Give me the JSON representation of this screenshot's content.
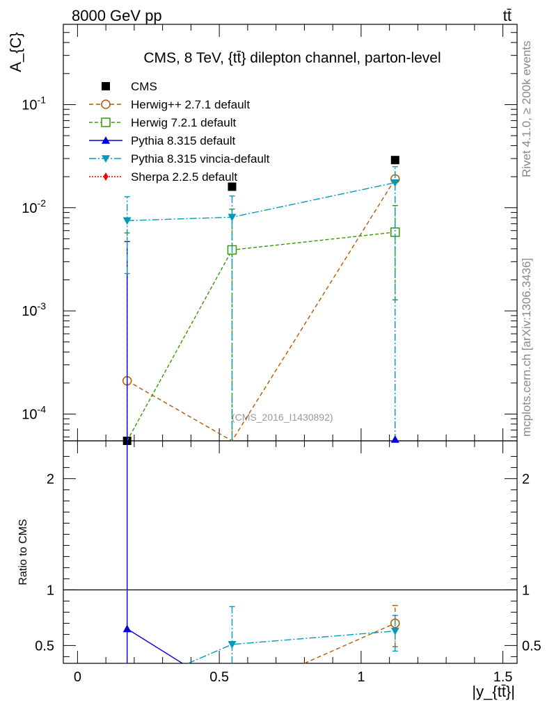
{
  "header": {
    "left": "8000 GeV pp",
    "right": "tt̄"
  },
  "side_text": {
    "version": "Rivet 4.1.0, ≥ 200k events",
    "site": "mcplots.cern.ch [arXiv:1306.3436]"
  },
  "watermark": "(CMS_2016_I1430892)",
  "chart_data": [
    {
      "type": "line",
      "panel": "main",
      "title": "CMS, 8 TeV, {tt̄} dilepton channel, parton-level",
      "ylabel": "A_{C}",
      "yscale": "log",
      "ylim": [
        5.5e-05,
        0.6
      ],
      "xlim": [
        -0.05,
        1.55
      ],
      "x_ticks": [
        "0",
        "0.5",
        "1",
        "1.5"
      ],
      "y_ticks": [
        "10^-4",
        "10^-3",
        "10^-2",
        "10^-1"
      ],
      "series": [
        {
          "name": "CMS",
          "marker": "square-filled",
          "color": "#000000",
          "points": [
            {
              "x": 0.175,
              "y": 5.5e-05
            },
            {
              "x": 0.545,
              "y": 0.016
            },
            {
              "x": 1.12,
              "y": 0.029
            }
          ]
        },
        {
          "name": "Herwig++ 2.7.1 default",
          "marker": "circle-open",
          "color": "#b35900",
          "dash": "6,4",
          "points": [
            {
              "x": 0.175,
              "y": 0.00021
            },
            {
              "x": 0.545,
              "y": 5.5e-05
            },
            {
              "x": 1.12,
              "y": 0.019
            }
          ]
        },
        {
          "name": "Herwig 7.2.1 default",
          "marker": "square-open",
          "color": "#339900",
          "dash": "5,3",
          "points": [
            {
              "x": 0.175,
              "y": 5.5e-05,
              "ylo": 5.5e-05,
              "yhi": 0.0057
            },
            {
              "x": 0.545,
              "y": 0.0039,
              "ylo": 5.5e-05,
              "yhi": 0.0097
            },
            {
              "x": 1.12,
              "y": 0.0058,
              "ylo": 0.00128,
              "yhi": 0.0105
            }
          ]
        },
        {
          "name": "Pythia 8.315 default",
          "marker": "triangle-up-filled",
          "color": "#0000dd",
          "dash": "",
          "points": [
            {
              "x": 0.175,
              "y": 5.5e-05,
              "ylo": 5.5e-05,
              "yhi": 0.0047
            }
          ]
        },
        {
          "name": "Pythia 8.315 vincia-default",
          "marker": "triangle-down-filled",
          "color": "#0099bb",
          "dash": "10,3,2,3",
          "points": [
            {
              "x": 0.175,
              "y": 0.0075,
              "ylo": 0.0023,
              "yhi": 0.0128
            },
            {
              "x": 0.545,
              "y": 0.0081,
              "ylo": 5.5e-05,
              "yhi": 0.013
            },
            {
              "x": 1.12,
              "y": 0.0175,
              "ylo": 5.5e-05,
              "yhi": 0.025
            }
          ]
        },
        {
          "name": "Sherpa 2.2.5 default",
          "marker": "diamond-filled",
          "color": "#ee0000",
          "dash": "2,2",
          "points": []
        }
      ]
    },
    {
      "type": "line",
      "panel": "ratio",
      "ylabel": "Ratio to CMS",
      "xlabel": "|y_{tt̄}|",
      "ylim": [
        0.34,
        2.34
      ],
      "x_ticks": [
        "0",
        "0.5",
        "1",
        "1.5"
      ],
      "y_ticks": [
        "0.5",
        "1",
        "2"
      ],
      "reference": 1,
      "series": [
        {
          "name": "Herwig++ 2.7.1 default",
          "color": "#b35900",
          "dash": "6,4",
          "marker": "circle-open",
          "points": [
            {
              "x": 0.8,
              "y": 0.3
            },
            {
              "x": 1.12,
              "y": 0.7,
              "ylo": 0.49,
              "yhi": 0.86
            }
          ]
        },
        {
          "name": "Pythia 8.315 default",
          "color": "#0000dd",
          "dash": "",
          "marker": "triangle-up-filled",
          "points": [
            {
              "x": 0.175,
              "y": 0.65,
              "ylo": 0.3,
              "yhi": 2.4
            },
            {
              "x": 0.37,
              "y": 0.3
            }
          ]
        },
        {
          "name": "Pythia 8.315 vincia-default",
          "color": "#0099bb",
          "dash": "10,3,2,3",
          "marker": "triangle-down-filled",
          "points": [
            {
              "x": 0.39,
              "y": 0.3
            },
            {
              "x": 0.545,
              "y": 0.51,
              "ylo": 0.3,
              "yhi": 0.85
            },
            {
              "x": 1.12,
              "y": 0.63,
              "ylo": 0.45,
              "yhi": 0.77
            }
          ]
        }
      ]
    }
  ]
}
